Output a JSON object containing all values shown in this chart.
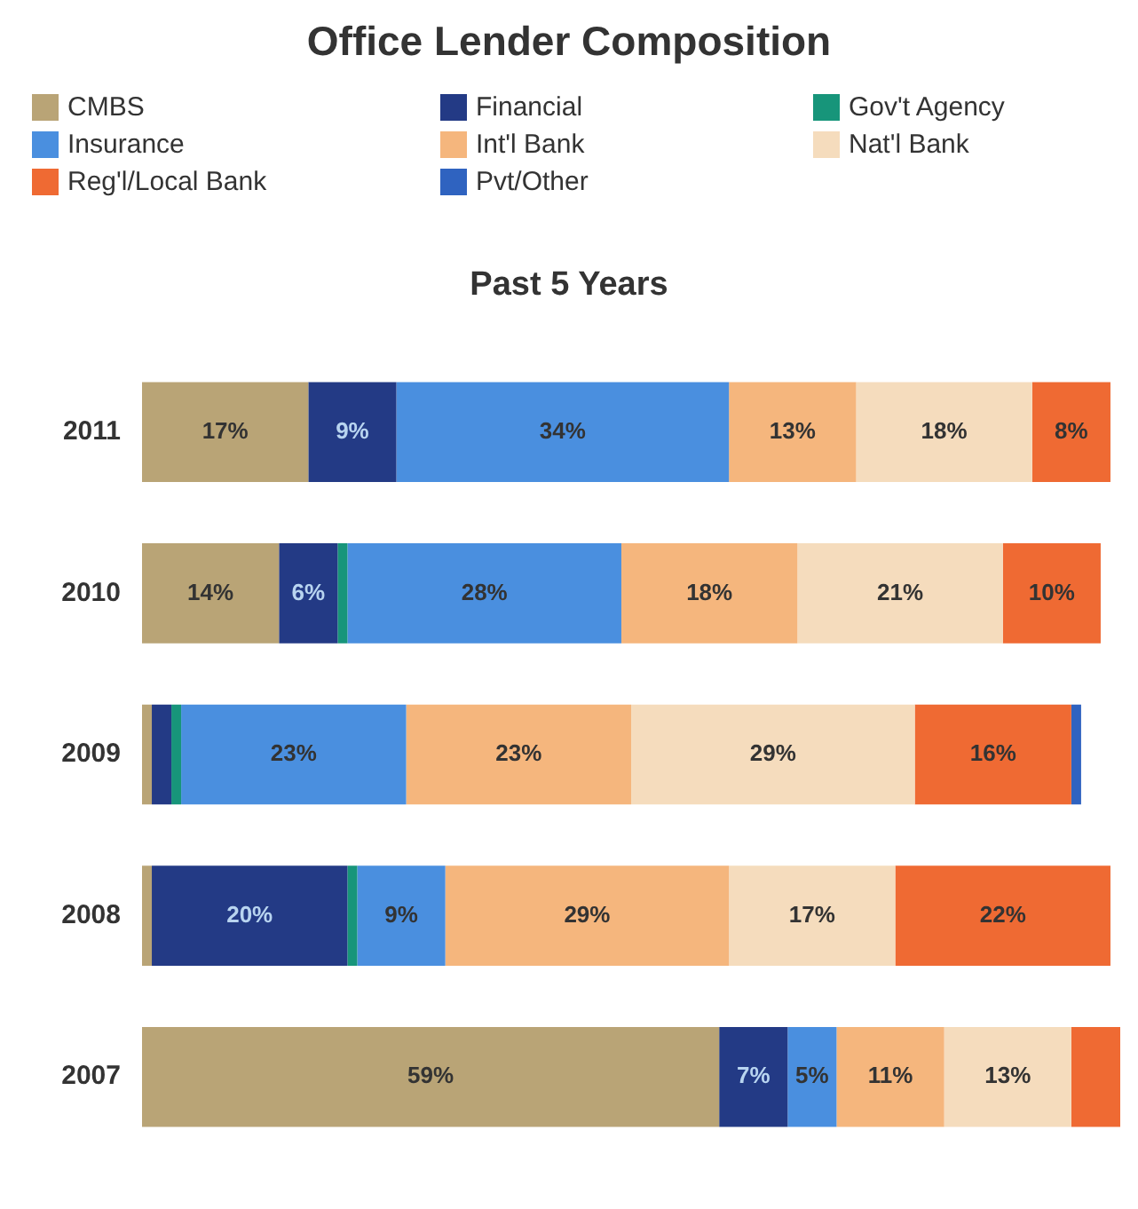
{
  "chart_data": {
    "type": "bar",
    "orientation": "horizontal",
    "stacked": true,
    "title": "Office Lender Composition",
    "subtitle": "Past 5 Years",
    "legend": "top left",
    "categories": [
      "2011",
      "2010",
      "2009",
      "2008",
      "2007"
    ],
    "series": [
      {
        "name": "CMBS",
        "color": "#b9a476",
        "values": [
          17,
          14,
          1,
          1,
          59
        ],
        "value_labels": [
          "17%",
          "14%",
          null,
          null,
          "59%"
        ]
      },
      {
        "name": "Financial",
        "color": "#233a85",
        "values": [
          9,
          6,
          2,
          20,
          7
        ],
        "value_labels": [
          "9%",
          "6%",
          null,
          "20%",
          "7%"
        ]
      },
      {
        "name": "Gov't Agency",
        "color": "#17957a",
        "values": [
          null,
          1,
          1,
          1,
          null
        ],
        "value_labels": [
          null,
          null,
          null,
          null,
          null
        ]
      },
      {
        "name": "Insurance",
        "color": "#4a8fdf",
        "values": [
          34,
          28,
          23,
          9,
          5
        ],
        "value_labels": [
          "34%",
          "28%",
          "23%",
          "9%",
          "5%"
        ]
      },
      {
        "name": "Int'l Bank",
        "color": "#f5b67d",
        "values": [
          13,
          18,
          23,
          29,
          11
        ],
        "value_labels": [
          "13%",
          "18%",
          "23%",
          "29%",
          "11%"
        ]
      },
      {
        "name": "Nat'l Bank",
        "color": "#f5dcbd",
        "values": [
          18,
          21,
          29,
          17,
          13
        ],
        "value_labels": [
          "18%",
          "21%",
          "29%",
          "17%",
          "13%"
        ]
      },
      {
        "name": "Reg'l/Local Bank",
        "color": "#ef6a33",
        "values": [
          8,
          10,
          16,
          22,
          5
        ],
        "value_labels": [
          "8%",
          "10%",
          "16%",
          "22%",
          null
        ]
      },
      {
        "name": "Pvt/Other",
        "color": "#2f63c0",
        "values": [
          null,
          null,
          1,
          null,
          null
        ],
        "value_labels": [
          null,
          null,
          null,
          null,
          null
        ]
      }
    ]
  }
}
